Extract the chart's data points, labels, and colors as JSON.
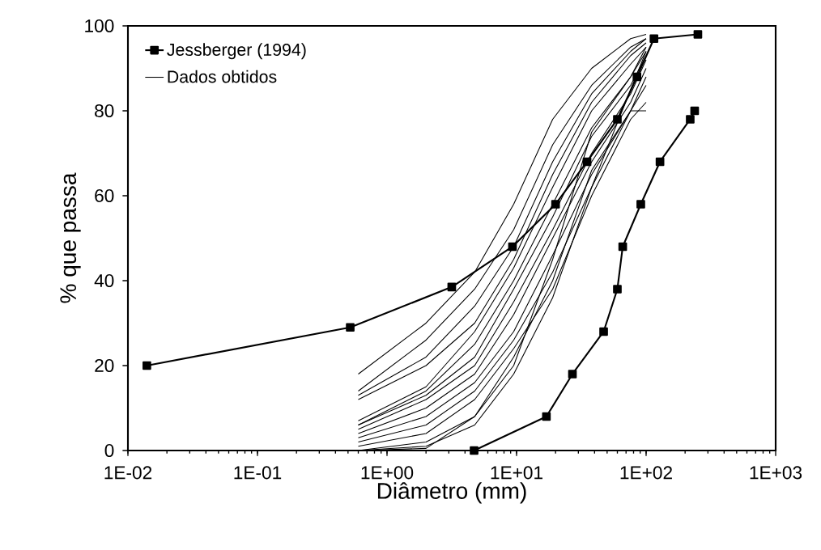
{
  "chart_data": {
    "type": "line",
    "xlabel": "Diâmetro (mm)",
    "ylabel": "% que passa",
    "log": "x",
    "xlim": [
      0.01,
      1000
    ],
    "ylim": [
      0,
      100
    ],
    "xticks": [
      {
        "value": 0.01,
        "label": "1E-02"
      },
      {
        "value": 0.1,
        "label": "1E-01"
      },
      {
        "value": 1,
        "label": "1E+00"
      },
      {
        "value": 10,
        "label": "1E+01"
      },
      {
        "value": 100,
        "label": "1E+02"
      },
      {
        "value": 1000,
        "label": "1E+03"
      }
    ],
    "yticks": [
      0,
      20,
      40,
      60,
      80,
      100
    ],
    "legend": "top left",
    "line_style": "solid",
    "series": [
      {
        "name": "Jessberger (1994)",
        "color": "#000000",
        "marker": "square",
        "x": [
          0.014,
          0.52,
          3.16,
          9.3,
          20,
          35,
          60,
          85,
          115,
          251
        ],
        "values": [
          20,
          29,
          38.5,
          48,
          58,
          68,
          78,
          88,
          97,
          98
        ]
      },
      {
        "color": "#000000",
        "marker": "square",
        "x": [
          4.7,
          17,
          27,
          47,
          60,
          66,
          91,
          128,
          219,
          237
        ],
        "values": [
          0,
          8,
          18,
          28,
          38,
          48,
          58,
          68,
          78,
          80
        ]
      },
      {
        "name": "Dados obtidos",
        "color": "#000000",
        "marker": "none",
        "x": [
          0.6,
          2,
          4.75,
          9.5,
          19,
          38,
          76,
          100
        ],
        "values": [
          18,
          30,
          42,
          58,
          78,
          90,
          97,
          98
        ]
      },
      {
        "color": "#000000",
        "marker": "none",
        "x": [
          0.6,
          2,
          4.75,
          9.5,
          19,
          38,
          76,
          100
        ],
        "values": [
          14,
          26,
          38,
          52,
          72,
          86,
          95,
          97
        ]
      },
      {
        "color": "#000000",
        "marker": "none",
        "x": [
          0.6,
          2,
          4.75,
          9.5,
          19,
          38,
          76,
          100
        ],
        "values": [
          13,
          22,
          34,
          48,
          68,
          84,
          94,
          97
        ]
      },
      {
        "color": "#000000",
        "marker": "none",
        "x": [
          0.6,
          2,
          4.75,
          9.5,
          19,
          38,
          76,
          100
        ],
        "values": [
          12,
          20,
          30,
          45,
          65,
          82,
          93,
          96
        ]
      },
      {
        "color": "#000000",
        "marker": "none",
        "x": [
          0.6,
          2,
          4.75,
          9.5,
          19,
          38,
          76,
          100
        ],
        "values": [
          7,
          15,
          28,
          43,
          62,
          80,
          91,
          95
        ]
      },
      {
        "color": "#000000",
        "marker": "none",
        "x": [
          0.6,
          2,
          4.75,
          9.5,
          19,
          38,
          76,
          100
        ],
        "values": [
          6,
          14,
          25,
          40,
          58,
          76,
          88,
          94
        ]
      },
      {
        "color": "#000000",
        "marker": "none",
        "x": [
          0.6,
          2,
          4.75,
          9.5,
          19,
          38,
          76,
          100
        ],
        "values": [
          6,
          13,
          22,
          38,
          55,
          74,
          86,
          93
        ]
      },
      {
        "color": "#000000",
        "marker": "none",
        "x": [
          0.6,
          2,
          4.75,
          9.5,
          19,
          38,
          76,
          100
        ],
        "values": [
          5,
          12,
          20,
          35,
          52,
          70,
          84,
          92
        ]
      },
      {
        "color": "#000000",
        "marker": "none",
        "x": [
          0.6,
          2,
          4.75,
          9.5,
          19,
          38,
          76,
          100
        ],
        "values": [
          4,
          10,
          18,
          32,
          50,
          68,
          82,
          90
        ]
      },
      {
        "color": "#000000",
        "marker": "none",
        "x": [
          0.6,
          2,
          4.75,
          9.5,
          19,
          38,
          76,
          100
        ],
        "values": [
          3,
          8,
          16,
          28,
          46,
          65,
          80,
          88
        ]
      },
      {
        "color": "#000000",
        "marker": "none",
        "x": [
          0.6,
          2,
          4.75,
          9.5,
          19,
          38,
          76,
          100
        ],
        "values": [
          2,
          6,
          14,
          26,
          42,
          62,
          80,
          86
        ]
      },
      {
        "color": "#000000",
        "marker": "none",
        "x": [
          0.6,
          2,
          4.75,
          9.5,
          19,
          38,
          76,
          100
        ],
        "values": [
          1,
          4,
          12,
          24,
          38,
          60,
          78,
          82
        ]
      },
      {
        "color": "#000000",
        "marker": "none",
        "x": [
          0.6,
          2,
          4.75,
          9.5,
          19,
          38,
          76,
          100
        ],
        "values": [
          0,
          2,
          8,
          22,
          40,
          66,
          80,
          80
        ]
      },
      {
        "color": "#000000",
        "marker": "none",
        "x": [
          0.6,
          2,
          4.75,
          9.5,
          19,
          38,
          76,
          100
        ],
        "values": [
          0,
          1,
          6,
          18,
          36,
          62,
          85,
          94
        ]
      },
      {
        "color": "#000000",
        "marker": "none",
        "x": [
          0.6,
          2,
          4.75,
          9.5,
          19,
          38,
          76,
          100
        ],
        "values": [
          0,
          0.5,
          8,
          20,
          45,
          75,
          88,
          95
        ]
      }
    ]
  }
}
